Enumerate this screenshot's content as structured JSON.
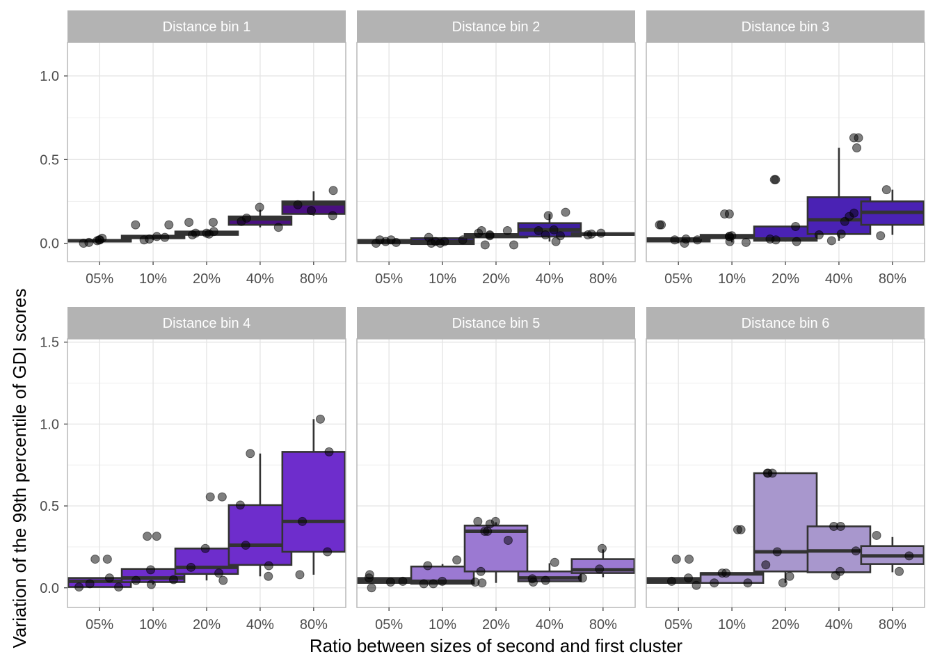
{
  "chart_data": {
    "type": "boxplot",
    "layout": "facet grid, 2 rows x 3 columns",
    "xlabel": "Ratio between sizes of second and first cluster",
    "ylabel": "Variation of the 99th percentile of GDI scores",
    "categories": [
      "05%",
      "10%",
      "20%",
      "40%",
      "80%"
    ],
    "grid": true,
    "legend": "none",
    "rows": [
      {
        "ylim": [
          -0.11,
          1.2
        ],
        "yticks": [
          0.0,
          0.5,
          1.0
        ],
        "ytick_labels": [
          "0.0",
          "0.5",
          "1.0"
        ]
      },
      {
        "ylim": [
          -0.12,
          1.52
        ],
        "yticks": [
          0.0,
          0.5,
          1.0,
          1.5
        ],
        "ytick_labels": [
          "0.0",
          "0.5",
          "1.0",
          "1.5"
        ]
      }
    ],
    "panels": [
      {
        "title": "Distance bin 1",
        "row": 0,
        "fill": "#4a1080",
        "boxes": [
          {
            "category": "05%",
            "q1": 0.01,
            "median": 0.015,
            "q3": 0.02,
            "whisker_low": 0.005,
            "whisker_high": 0.025,
            "points": [
              0.02,
              0.03,
              0.0,
              0.005,
              0.015,
              0.02
            ]
          },
          {
            "category": "10%",
            "q1": 0.03,
            "median": 0.035,
            "q3": 0.045,
            "whisker_low": 0.02,
            "whisker_high": 0.045,
            "points": [
              0.11,
              0.11,
              0.04,
              0.025,
              0.02,
              0.035
            ]
          },
          {
            "category": "20%",
            "q1": 0.05,
            "median": 0.06,
            "q3": 0.07,
            "whisker_low": 0.05,
            "whisker_high": 0.07,
            "points": [
              0.125,
              0.125,
              0.06,
              0.06,
              0.07,
              0.05,
              0.055
            ]
          },
          {
            "category": "40%",
            "q1": 0.11,
            "median": 0.145,
            "q3": 0.16,
            "whisker_low": 0.095,
            "whisker_high": 0.2,
            "points": [
              0.215,
              0.15,
              0.13,
              0.095
            ]
          },
          {
            "category": "80%",
            "q1": 0.175,
            "median": 0.235,
            "q3": 0.25,
            "whisker_low": 0.165,
            "whisker_high": 0.31,
            "points": [
              0.315,
              0.23,
              0.195,
              0.165
            ]
          }
        ]
      },
      {
        "title": "Distance bin 2",
        "row": 0,
        "fill": "#3f1fa0",
        "boxes": [
          {
            "category": "05%",
            "q1": 0.0,
            "median": 0.01,
            "q3": 0.02,
            "whisker_low": 0.0,
            "whisker_high": 0.02,
            "points": [
              0.0,
              0.01,
              0.02,
              0.005,
              0.02
            ]
          },
          {
            "category": "10%",
            "q1": -0.005,
            "median": 0.01,
            "q3": 0.03,
            "whisker_low": -0.005,
            "whisker_high": 0.035,
            "points": [
              0.035,
              0.02,
              0.0,
              0.0,
              0.01,
              0.01
            ]
          },
          {
            "category": "20%",
            "q1": 0.035,
            "median": 0.045,
            "q3": 0.055,
            "whisker_low": 0.035,
            "whisker_high": 0.055,
            "points": [
              0.075,
              0.075,
              0.045,
              0.05,
              0.06,
              -0.01,
              -0.01
            ]
          },
          {
            "category": "40%",
            "q1": 0.04,
            "median": 0.08,
            "q3": 0.12,
            "whisker_low": 0.01,
            "whisker_high": 0.175,
            "points": [
              0.185,
              0.165,
              0.075,
              0.08,
              0.05,
              0.045,
              0.01
            ]
          },
          {
            "category": "80%",
            "q1": 0.05,
            "median": 0.055,
            "q3": 0.06,
            "whisker_low": 0.05,
            "whisker_high": 0.06,
            "points": [
              0.05,
              0.055,
              0.06
            ]
          }
        ]
      },
      {
        "title": "Distance bin 3",
        "row": 0,
        "fill": "#4a22b4",
        "boxes": [
          {
            "category": "05%",
            "q1": 0.01,
            "median": 0.02,
            "q3": 0.03,
            "whisker_low": 0.0,
            "whisker_high": 0.03,
            "points": [
              0.11,
              0.11,
              0.02,
              0.025,
              0.0,
              0.02
            ]
          },
          {
            "category": "10%",
            "q1": 0.03,
            "median": 0.04,
            "q3": 0.05,
            "whisker_low": 0.005,
            "whisker_high": 0.05,
            "points": [
              0.175,
              0.175,
              0.045,
              0.04,
              0.005,
              0.01,
              0.04
            ]
          },
          {
            "category": "20%",
            "q1": 0.015,
            "median": 0.025,
            "q3": 0.1,
            "whisker_low": 0.01,
            "whisker_high": 0.1,
            "points": [
              0.38,
              0.38,
              0.1,
              0.025,
              0.02,
              0.01
            ]
          },
          {
            "category": "40%",
            "q1": 0.055,
            "median": 0.14,
            "q3": 0.275,
            "whisker_low": 0.015,
            "whisker_high": 0.57,
            "points": [
              0.63,
              0.63,
              0.57,
              0.18,
              0.16,
              0.13,
              0.055,
              0.05,
              0.015
            ]
          },
          {
            "category": "80%",
            "q1": 0.11,
            "median": 0.185,
            "q3": 0.25,
            "whisker_low": 0.05,
            "whisker_high": 0.32,
            "points": [
              0.32,
              0.045
            ]
          }
        ]
      },
      {
        "title": "Distance bin 4",
        "row": 1,
        "fill": "#6e2dcc",
        "boxes": [
          {
            "category": "05%",
            "q1": 0.005,
            "median": 0.04,
            "q3": 0.06,
            "whisker_low": 0.005,
            "whisker_high": 0.06,
            "points": [
              0.175,
              0.175,
              0.06,
              0.025,
              0.005,
              0.005
            ]
          },
          {
            "category": "10%",
            "q1": 0.035,
            "median": 0.06,
            "q3": 0.115,
            "whisker_low": 0.02,
            "whisker_high": 0.115,
            "points": [
              0.315,
              0.315,
              0.11,
              0.045,
              0.05,
              0.02
            ]
          },
          {
            "category": "20%",
            "q1": 0.085,
            "median": 0.125,
            "q3": 0.24,
            "whisker_low": 0.045,
            "whisker_high": 0.24,
            "points": [
              0.555,
              0.555,
              0.24,
              0.125,
              0.09,
              0.045
            ]
          },
          {
            "category": "40%",
            "q1": 0.14,
            "median": 0.26,
            "q3": 0.505,
            "whisker_low": 0.07,
            "whisker_high": 0.82,
            "points": [
              0.82,
              0.505,
              0.26,
              0.135,
              0.07
            ]
          },
          {
            "category": "80%",
            "q1": 0.22,
            "median": 0.405,
            "q3": 0.83,
            "whisker_low": 0.08,
            "whisker_high": 1.03,
            "points": [
              1.03,
              0.83,
              0.405,
              0.22,
              0.08
            ]
          }
        ]
      },
      {
        "title": "Distance bin 5",
        "row": 1,
        "fill": "#9b79d2",
        "boxes": [
          {
            "category": "05%",
            "q1": 0.03,
            "median": 0.045,
            "q3": 0.06,
            "whisker_low": 0.03,
            "whisker_high": 0.06,
            "points": [
              0.08,
              0.0,
              0.06,
              0.035,
              0.04
            ]
          },
          {
            "category": "10%",
            "q1": 0.025,
            "median": 0.04,
            "q3": 0.13,
            "whisker_low": 0.025,
            "whisker_high": 0.145,
            "points": [
              0.17,
              0.135,
              0.04,
              0.025,
              0.025
            ]
          },
          {
            "category": "20%",
            "q1": 0.1,
            "median": 0.345,
            "q3": 0.38,
            "whisker_low": 0.03,
            "whisker_high": 0.4,
            "points": [
              0.405,
              0.405,
              0.39,
              0.345,
              0.345,
              0.29,
              0.1,
              0.03,
              0.035
            ]
          },
          {
            "category": "40%",
            "q1": 0.04,
            "median": 0.06,
            "q3": 0.1,
            "whisker_low": 0.035,
            "whisker_high": 0.15,
            "points": [
              0.155,
              0.055,
              0.045,
              0.035
            ]
          },
          {
            "category": "80%",
            "q1": 0.09,
            "median": 0.11,
            "q3": 0.175,
            "whisker_low": 0.065,
            "whisker_high": 0.235,
            "points": [
              0.24,
              0.115,
              0.06
            ]
          }
        ]
      },
      {
        "title": "Distance bin 6",
        "row": 1,
        "fill": "#a897cd",
        "boxes": [
          {
            "category": "05%",
            "q1": 0.03,
            "median": 0.045,
            "q3": 0.06,
            "whisker_low": 0.03,
            "whisker_high": 0.06,
            "points": [
              0.175,
              0.175,
              0.06,
              0.04,
              0.015
            ]
          },
          {
            "category": "10%",
            "q1": 0.03,
            "median": 0.085,
            "q3": 0.09,
            "whisker_low": 0.03,
            "whisker_high": 0.09,
            "points": [
              0.355,
              0.355,
              0.09,
              0.09,
              0.03,
              0.03
            ]
          },
          {
            "category": "20%",
            "q1": 0.1,
            "median": 0.22,
            "q3": 0.7,
            "whisker_low": 0.03,
            "whisker_high": 0.7,
            "points": [
              0.7,
              0.7,
              0.7,
              0.22,
              0.14,
              0.07,
              0.03
            ]
          },
          {
            "category": "40%",
            "q1": 0.095,
            "median": 0.225,
            "q3": 0.375,
            "whisker_low": 0.095,
            "whisker_high": 0.375,
            "points": [
              0.375,
              0.375,
              0.225,
              0.1,
              0.075
            ]
          },
          {
            "category": "80%",
            "q1": 0.145,
            "median": 0.195,
            "q3": 0.255,
            "whisker_low": 0.095,
            "whisker_high": 0.31,
            "points": [
              0.32,
              0.195,
              0.1
            ]
          }
        ]
      }
    ],
    "colors": {
      "strip_background": "#b3b3b3",
      "strip_text": "#ffffff",
      "panel_border": "#b3b3b3",
      "grid": "#e5e5e5",
      "box_outline": "#333333",
      "point": "#000000"
    }
  }
}
